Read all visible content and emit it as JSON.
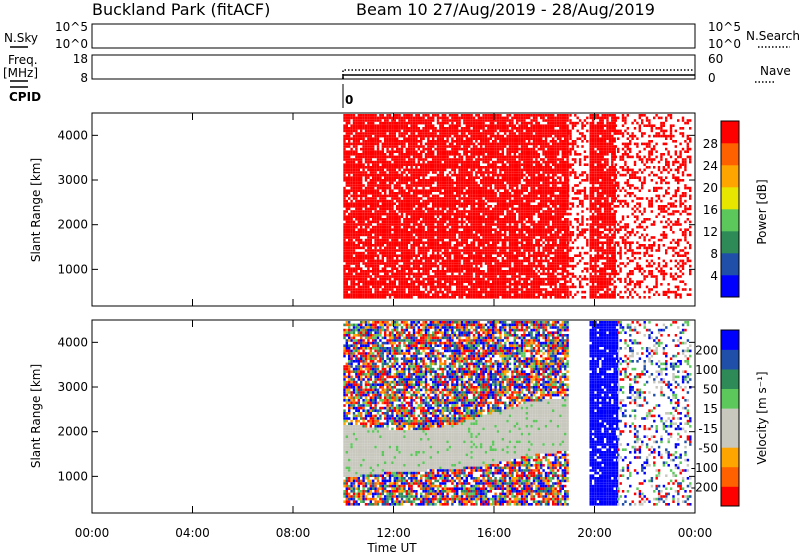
{
  "header": {
    "station": "Buckland Park (fitACF)",
    "beam_date": "Beam 10 27/Aug/2019 - 28/Aug/2019"
  },
  "panels": {
    "nsky": {
      "label": "N.Sky",
      "tick_top": "10^5",
      "tick_bottom": "10^0"
    },
    "nsearch": {
      "label": "N.Search",
      "tick_top": "10^5",
      "tick_bottom": "10^0"
    },
    "freq": {
      "label": "Freq.",
      "unit": "[MHz]",
      "tick_top": "18",
      "tick_bottom": "8"
    },
    "nave": {
      "label": "Nave",
      "tick_top": "60",
      "tick_bottom": "0"
    },
    "cpid": {
      "label": "CPID",
      "value": "0"
    }
  },
  "colors": {
    "power_scale": [
      "#0000ff",
      "#1f4fa8",
      "#2e8b57",
      "#5cc85c",
      "#e6e600",
      "#ffa500",
      "#ff6000",
      "#ff0000"
    ],
    "velocity_scale": [
      "#ff0000",
      "#ff6000",
      "#ffa500",
      "#c8c8be",
      "#c8c8be",
      "#5cc85c",
      "#2e8b57",
      "#1f4fa8",
      "#0000ff"
    ],
    "ground_scatter": "#c8c8be"
  },
  "chart_data": [
    {
      "type": "heatmap",
      "name": "power",
      "xlabel": "",
      "ylabel": "Slant Range [km]",
      "x_ticks": [
        "00:00",
        "04:00",
        "08:00",
        "12:00",
        "16:00",
        "20:00",
        "00:00"
      ],
      "xlim_hours": [
        0,
        24
      ],
      "ylim": [
        180,
        4500
      ],
      "y_ticks": [
        1000,
        2000,
        3000,
        4000
      ],
      "colorbar": {
        "label": "Power [dB]",
        "ticks": [
          "4",
          "8",
          "12",
          "16",
          "20",
          "24",
          "28"
        ],
        "range": [
          0,
          30
        ]
      },
      "data_segments": [
        {
          "start_hour": 10.0,
          "end_hour": 18.9,
          "value_db": 30,
          "coverage": "dense"
        },
        {
          "start_hour": 18.9,
          "end_hour": 19.7,
          "value_db": 30,
          "coverage": "sparse"
        },
        {
          "start_hour": 19.8,
          "end_hour": 20.8,
          "value_db": 30,
          "coverage": "dense"
        },
        {
          "start_hour": 20.8,
          "end_hour": 23.8,
          "value_db": 30,
          "coverage": "sparse"
        }
      ]
    },
    {
      "type": "heatmap",
      "name": "velocity",
      "xlabel": "Time UT",
      "ylabel": "Slant Range [km]",
      "x_ticks": [
        "00:00",
        "04:00",
        "08:00",
        "12:00",
        "16:00",
        "20:00",
        "00:00"
      ],
      "xlim_hours": [
        0,
        24
      ],
      "ylim": [
        180,
        4500
      ],
      "y_ticks": [
        1000,
        2000,
        3000,
        4000
      ],
      "colorbar": {
        "label": "Velocity [m s⁻¹]",
        "ticks": [
          "200",
          "100",
          "50",
          "15",
          "-15",
          "-50",
          "-100",
          "-200"
        ],
        "range": [
          -250,
          250
        ]
      },
      "ground_scatter_band": {
        "start_hour": 10.0,
        "end_hour": 18.9,
        "lower_km": [
          1000,
          1100,
          1150,
          1200,
          1300,
          1500,
          1600
        ],
        "upper_km": [
          2200,
          2100,
          2050,
          2200,
          2450,
          2700,
          2800
        ]
      },
      "data_segments": [
        {
          "start_hour": 10.0,
          "end_hour": 18.9,
          "coverage": "dense"
        },
        {
          "start_hour": 19.8,
          "end_hour": 20.9,
          "value_ms": 250,
          "coverage": "dense"
        },
        {
          "start_hour": 20.9,
          "end_hour": 23.8,
          "coverage": "sparse"
        }
      ]
    }
  ]
}
